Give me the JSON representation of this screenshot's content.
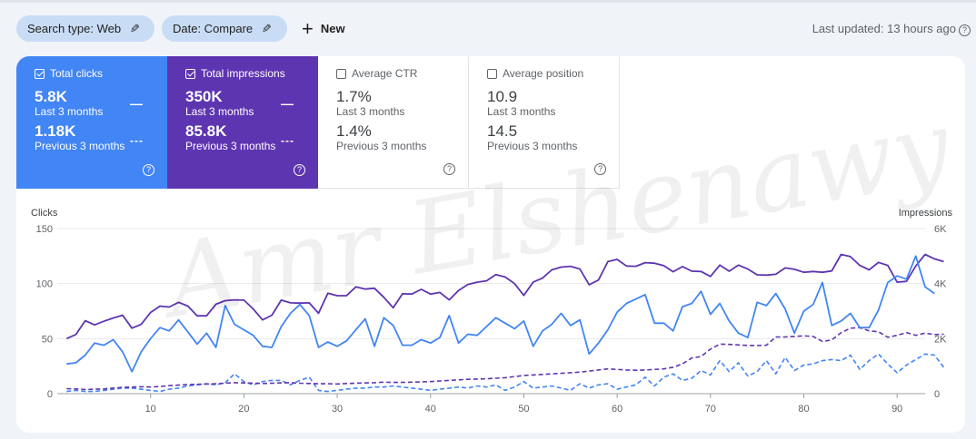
{
  "filters": {
    "search_type": "Search type: Web",
    "date": "Date: Compare",
    "new_label": "New",
    "last_updated": "Last updated: 13 hours ago"
  },
  "metrics": [
    {
      "label": "Total clicks",
      "checked": true,
      "current": "5.8K",
      "current_period": "Last 3 months",
      "previous": "1.18K",
      "previous_period": "Previous 3 months",
      "color": "#4285f4"
    },
    {
      "label": "Total impressions",
      "checked": true,
      "current": "350K",
      "current_period": "Last 3 months",
      "previous": "85.8K",
      "previous_period": "Previous 3 months",
      "color": "#5e35b1"
    },
    {
      "label": "Average CTR",
      "checked": false,
      "current": "1.7%",
      "current_period": "Last 3 months",
      "previous": "1.4%",
      "previous_period": "Previous 3 months"
    },
    {
      "label": "Average position",
      "checked": false,
      "current": "10.9",
      "current_period": "Last 3 months",
      "previous": "14.5",
      "previous_period": "Previous 3 months"
    }
  ],
  "watermark": "Amr Elshenawy",
  "chart_data": {
    "type": "line",
    "left_axis_title": "Clicks",
    "right_axis_title": "Impressions",
    "left_ticks": [
      "0",
      "50",
      "100",
      "150"
    ],
    "right_ticks": [
      "0",
      "2K",
      "4K",
      "6K"
    ],
    "ylim_left": [
      0,
      150
    ],
    "ylim_right": [
      0,
      6000
    ],
    "xlim": [
      0,
      93
    ],
    "x_ticks": [
      "10",
      "20",
      "30",
      "40",
      "50",
      "60",
      "70",
      "80",
      "90"
    ],
    "grid": true,
    "series": [
      {
        "name": "Total clicks",
        "period": "Last 3 months",
        "axis": "left",
        "dashed": false,
        "color": "#4285f4",
        "values": [
          27,
          28,
          35,
          46,
          44,
          49,
          38,
          20,
          38,
          50,
          60,
          57,
          67,
          56,
          45,
          55,
          42,
          80,
          63,
          58,
          53,
          43,
          42,
          61,
          73,
          81,
          71,
          42,
          47,
          43,
          48,
          58,
          68,
          43,
          69,
          62,
          44,
          44,
          49,
          46,
          51,
          71,
          46,
          54,
          53,
          61,
          69,
          64,
          59,
          66,
          43,
          57,
          63,
          73,
          62,
          67,
          36,
          46,
          58,
          74,
          82,
          86,
          90,
          64,
          64,
          57,
          79,
          82,
          93,
          72,
          82,
          66,
          55,
          51,
          83,
          80,
          91,
          77,
          55,
          75,
          81,
          101,
          62,
          66,
          73,
          60,
          60,
          76,
          101,
          107,
          104,
          125,
          97,
          91
        ]
      },
      {
        "name": "Total impressions",
        "period": "Last 3 months",
        "axis": "right",
        "dashed": false,
        "color": "#5e35b1",
        "values": [
          2000,
          2150,
          2650,
          2500,
          2630,
          2750,
          2850,
          2380,
          2520,
          2950,
          3180,
          3150,
          3320,
          3180,
          2830,
          2830,
          3250,
          3380,
          3410,
          3400,
          3080,
          2680,
          2850,
          3400,
          3300,
          3290,
          3300,
          2920,
          3650,
          3560,
          3560,
          3880,
          3800,
          3830,
          3500,
          3120,
          3630,
          3620,
          3790,
          3620,
          3680,
          3410,
          3750,
          3970,
          4050,
          4100,
          4330,
          4240,
          4000,
          3570,
          4050,
          4200,
          4500,
          4600,
          4630,
          4530,
          3960,
          4130,
          4800,
          4880,
          4640,
          4630,
          4760,
          4740,
          4650,
          4430,
          4620,
          4450,
          4440,
          4260,
          4670,
          4450,
          4670,
          4530,
          4320,
          4310,
          4340,
          4570,
          4520,
          4410,
          4440,
          4410,
          4460,
          5060,
          4980,
          4660,
          4500,
          4770,
          4660,
          4050,
          4080,
          4640,
          5060,
          4900,
          4800
        ]
      },
      {
        "name": "Total clicks",
        "period": "Previous 3 months",
        "axis": "left",
        "dashed": true,
        "color": "#4285f4",
        "values": [
          2,
          3,
          2,
          2,
          3,
          4,
          5,
          5,
          4,
          3,
          2,
          4,
          5,
          7,
          8,
          9,
          8,
          10,
          18,
          11,
          8,
          11,
          12,
          12,
          8,
          12,
          15,
          3,
          2,
          3,
          4,
          5,
          5,
          6,
          6,
          7,
          6,
          5,
          4,
          3,
          4,
          5,
          6,
          5,
          7,
          6,
          8,
          3,
          6,
          11,
          5,
          6,
          7,
          5,
          3,
          9,
          5,
          8,
          9,
          4,
          6,
          8,
          15,
          7,
          15,
          18,
          12,
          14,
          21,
          17,
          30,
          20,
          28,
          16,
          20,
          30,
          18,
          33,
          21,
          26,
          27,
          30,
          31,
          30,
          35,
          22,
          30,
          36,
          27,
          19,
          26,
          31,
          36,
          35,
          24
        ]
      },
      {
        "name": "Total impressions",
        "period": "Previous 3 months",
        "axis": "right",
        "dashed": true,
        "color": "#5e35b1",
        "values": [
          180,
          170,
          150,
          160,
          170,
          200,
          230,
          240,
          250,
          240,
          260,
          290,
          310,
          330,
          340,
          350,
          360,
          380,
          400,
          390,
          380,
          370,
          380,
          390,
          400,
          380,
          370,
          360,
          360,
          350,
          370,
          380,
          390,
          400,
          420,
          410,
          410,
          420,
          430,
          440,
          460,
          480,
          500,
          520,
          530,
          540,
          560,
          580,
          620,
          660,
          680,
          700,
          720,
          740,
          760,
          780,
          820,
          860,
          900,
          880,
          860,
          850,
          860,
          880,
          900,
          960,
          1080,
          1300,
          1350,
          1620,
          1800,
          1790,
          1770,
          1750,
          1750,
          1760,
          2060,
          2060,
          2080,
          2100,
          2080,
          1900,
          1950,
          2220,
          2380,
          2400,
          2280,
          2250,
          2050,
          2120,
          2220,
          2120,
          2200,
          2150,
          2160
        ]
      }
    ]
  }
}
